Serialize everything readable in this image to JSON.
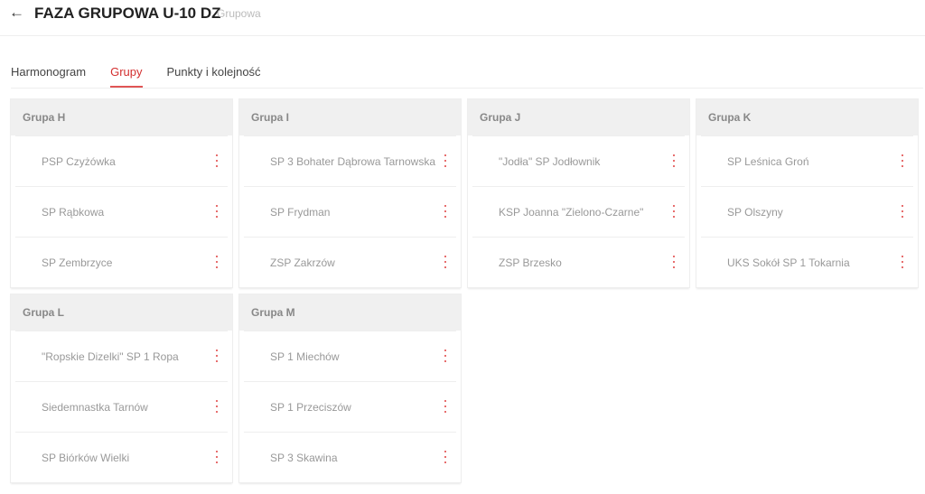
{
  "header": {
    "title": "FAZA GRUPOWA U-10 DZ",
    "subtitle": "Grupowa",
    "back_icon": "arrow-left-icon"
  },
  "tabs": [
    {
      "label": "Harmonogram",
      "active": false
    },
    {
      "label": "Grupy",
      "active": true
    },
    {
      "label": "Punkty i kolejność",
      "active": false
    }
  ],
  "accent": "#d32f2f",
  "groups": [
    {
      "name": "Grupa H",
      "teams": [
        "PSP Czyżówka",
        "SP Rąbkowa",
        "SP Zembrzyce"
      ]
    },
    {
      "name": "Grupa I",
      "teams": [
        "SP 3 Bohater Dąbrowa Tarnowska",
        "SP Frydman",
        "ZSP Zakrzów"
      ]
    },
    {
      "name": "Grupa J",
      "teams": [
        "\"Jodła\" SP Jodłownik",
        "KSP Joanna \"Zielono-Czarne\"",
        "ZSP Brzesko"
      ]
    },
    {
      "name": "Grupa K",
      "teams": [
        "SP Leśnica Groń",
        "SP Olszyny",
        "UKS Sokół SP 1 Tokarnia"
      ]
    },
    {
      "name": "Grupa L",
      "teams": [
        "\"Ropskie Dizelki\" SP 1 Ropa",
        "Siedemnastka Tarnów",
        "SP Biórków Wielki"
      ]
    },
    {
      "name": "Grupa M",
      "teams": [
        "SP 1 Miechów",
        "SP 1 Przeciszów",
        "SP 3 Skawina"
      ]
    }
  ]
}
